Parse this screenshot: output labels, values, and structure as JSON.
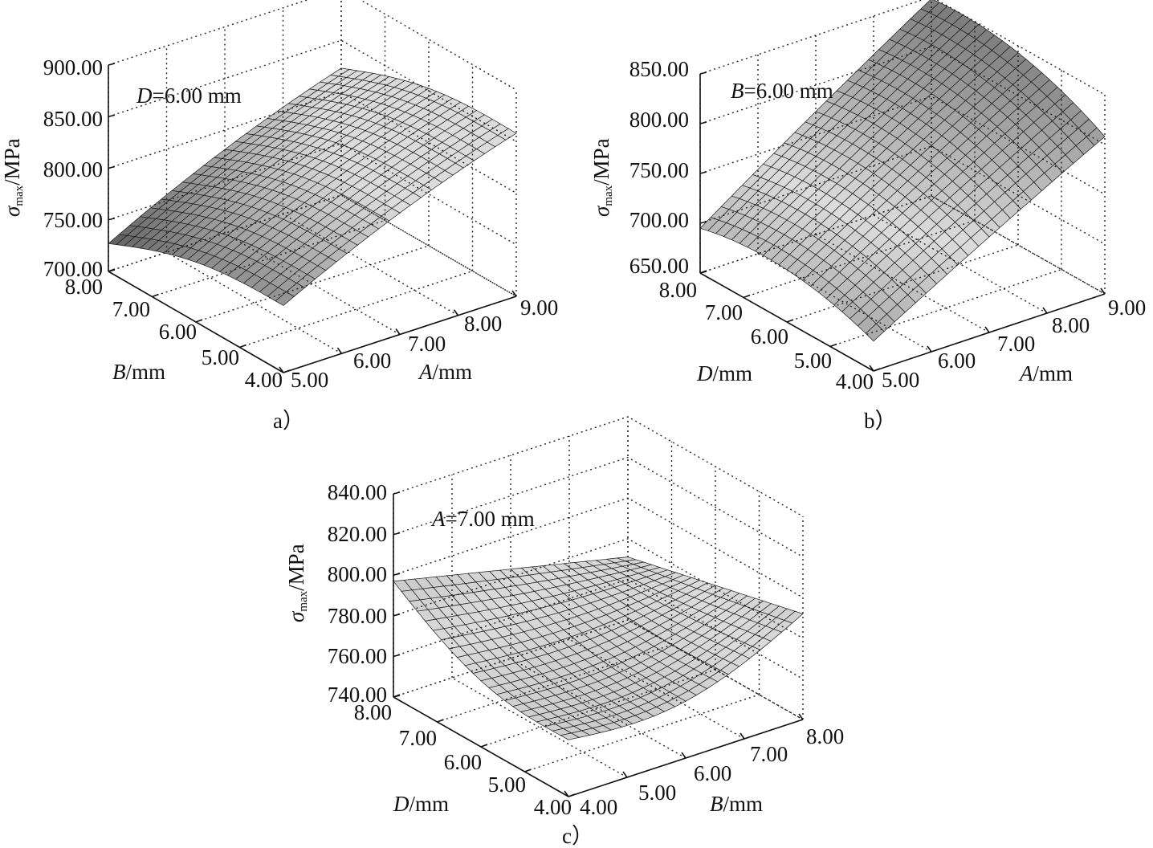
{
  "charts": [
    {
      "id": "a",
      "caption": "a）",
      "annotation": {
        "var": "D",
        "rest": "=6.00 mm"
      },
      "z_label": {
        "sym": "σ",
        "sub": "max",
        "unit": "/MPa"
      },
      "z_ticks": [
        "700.00",
        "750.00",
        "800.00",
        "850.00",
        "900.00"
      ],
      "x_label": {
        "var": "A",
        "unit": "/mm"
      },
      "x_ticks": [
        "5.00",
        "6.00",
        "7.00",
        "8.00",
        "9.00"
      ],
      "y_label": {
        "var": "B",
        "unit": "/mm"
      },
      "y_ticks": [
        "4.00",
        "5.00",
        "6.00",
        "7.00",
        "8.00"
      ]
    },
    {
      "id": "b",
      "caption": "b）",
      "annotation": {
        "var": "B",
        "rest": "=6.00 mm"
      },
      "z_label": {
        "sym": "σ",
        "sub": "max",
        "unit": "/MPa"
      },
      "z_ticks": [
        "650.00",
        "700.00",
        "750.00",
        "800.00",
        "850.00"
      ],
      "x_label": {
        "var": "A",
        "unit": "/mm"
      },
      "x_ticks": [
        "5.00",
        "6.00",
        "7.00",
        "8.00",
        "9.00"
      ],
      "y_label": {
        "var": "D",
        "unit": "/mm"
      },
      "y_ticks": [
        "4.00",
        "5.00",
        "6.00",
        "7.00",
        "8.00"
      ]
    },
    {
      "id": "c",
      "caption": "c）",
      "annotation": {
        "var": "A",
        "rest": "=7.00 mm"
      },
      "z_label": {
        "sym": "σ",
        "sub": "max",
        "unit": "/MPa"
      },
      "z_ticks": [
        "740.00",
        "760.00",
        "780.00",
        "800.00",
        "820.00",
        "840.00"
      ],
      "x_label": {
        "var": "B",
        "unit": "/mm"
      },
      "x_ticks": [
        "4.00",
        "5.00",
        "6.00",
        "7.00",
        "8.00"
      ],
      "y_label": {
        "var": "D",
        "unit": "/mm"
      },
      "y_ticks": [
        "4.00",
        "5.00",
        "6.00",
        "7.00",
        "8.00"
      ]
    }
  ],
  "chart_data": [
    {
      "type": "surface",
      "panel": "a",
      "fixed": "D = 6.00 mm",
      "x_var": "A/mm",
      "x_range": [
        5,
        9
      ],
      "y_var": "B/mm",
      "y_range": [
        4,
        8
      ],
      "z_var": "σmax/MPa",
      "z_range": [
        700,
        900
      ],
      "corner_values": {
        "A5_B4": 765,
        "A9_B4": 858,
        "A5_B8": 727,
        "A9_B8": 823
      },
      "grid": true
    },
    {
      "type": "surface",
      "panel": "b",
      "fixed": "B = 6.00 mm",
      "x_var": "A/mm",
      "x_range": [
        5,
        9
      ],
      "y_var": "D/mm",
      "y_range": [
        4,
        8
      ],
      "z_var": "σmax/MPa",
      "z_range": [
        650,
        850
      ],
      "corner_values": {
        "A5_D4": 680,
        "A9_D4": 808,
        "A5_D8": 695,
        "A9_D8": 848
      },
      "grid": true
    },
    {
      "type": "surface",
      "panel": "c",
      "fixed": "A = 7.00 mm",
      "x_var": "B/mm",
      "x_range": [
        4,
        8
      ],
      "y_var": "D/mm",
      "y_range": [
        4,
        8
      ],
      "z_var": "σmax/MPa",
      "z_range": [
        740,
        840
      ],
      "corner_values": {
        "B4_D4": 768,
        "B8_D4": 792,
        "B4_D8": 797,
        "B8_D8": 771
      },
      "grid": true
    }
  ]
}
